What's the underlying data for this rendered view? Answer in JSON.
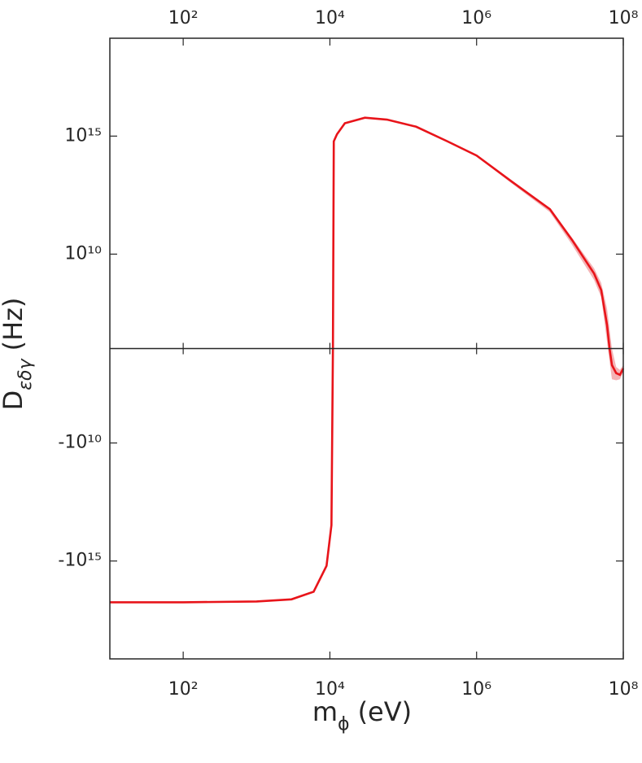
{
  "chart_data": {
    "type": "line",
    "xlabel": [
      "m",
      "ϕ",
      "(eV)"
    ],
    "ylabel": [
      "D",
      "εδγ",
      "(Hz)"
    ],
    "xscale": "log",
    "yscale": "split-log",
    "y_log_floor": 1000000.0,
    "xlim": [
      10,
      100000000
    ],
    "ylim": [
      -1.4e+19,
      1.4e+19
    ],
    "xticks": [
      {
        "value": 100,
        "label": "10²"
      },
      {
        "value": 10000,
        "label": "10⁴"
      },
      {
        "value": 1000000,
        "label": "10⁶"
      },
      {
        "value": 100000000,
        "label": "10⁸"
      }
    ],
    "yticks": [
      {
        "value": -1000000000000000.0,
        "label": "-10¹⁵"
      },
      {
        "value": -10000000000.0,
        "label": "-10¹⁰"
      },
      {
        "value": 10000000000.0,
        "label": "10¹⁰"
      },
      {
        "value": 1000000000000000.0,
        "label": "10¹⁵"
      }
    ],
    "series": [
      {
        "color": "#e8141a",
        "x": [
          10,
          100,
          1000,
          3000,
          6000,
          9000,
          10500,
          11000,
          11300,
          12500,
          16000,
          30000,
          60000,
          150000,
          400000,
          1000000,
          3000000,
          10000000,
          20000000,
          40000000,
          50000000,
          60000000,
          65000000,
          70000000,
          80000000,
          90000000,
          100000000
        ],
        "values": [
          -5.6e+16,
          -5.6e+16,
          -5.2e+16,
          -4.2e+16,
          -2e+16,
          -1600000000000000.0,
          -30000000000000.0,
          0,
          600000000000000.0,
          1200000000000000.0,
          3500000000000000.0,
          6000000000000000.0,
          5000000000000000.0,
          2500000000000000.0,
          600000000000000.0,
          150000000000000.0,
          12000000000000.0,
          800000000000.0,
          40000000000.0,
          1500000000.0,
          300000000.0,
          10000000.0,
          0,
          -5000000.0,
          -11000000.0,
          -13000000.0,
          -7000000.0
        ]
      }
    ],
    "band": {
      "color": "#f4b3b5",
      "x": [
        1000000,
        3000000,
        10000000,
        20000000,
        40000000,
        50000000,
        60000000,
        70000000,
        80000000,
        90000000,
        100000000
      ],
      "upper": [
        160000000000000.0,
        13000000000000.0,
        900000000000.0,
        50000000000.0,
        2500000000.0,
        600000000.0,
        50000000.0,
        0,
        -6000000.0,
        -8000000.0,
        -5000000.0
      ],
      "lower": [
        140000000000000.0,
        10000000000000.0,
        600000000000.0,
        25000000000.0,
        800000000.0,
        150000000.0,
        2000000.0,
        -20000000.0,
        -22000000.0,
        -20000000.0,
        -10000000.0
      ]
    }
  }
}
